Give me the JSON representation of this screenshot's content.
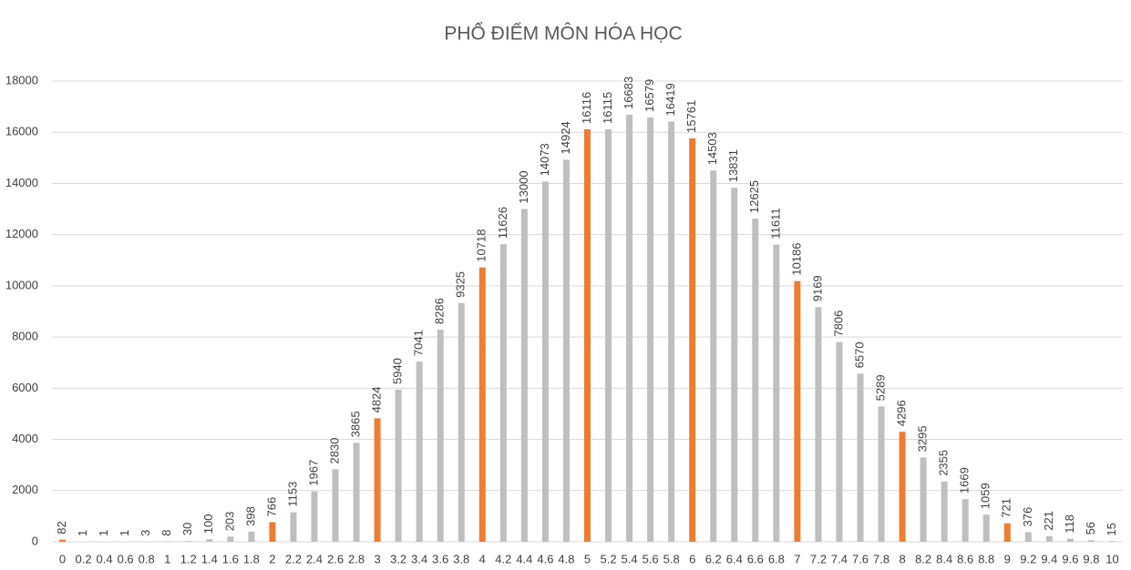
{
  "chart_data": {
    "type": "bar",
    "title": "PHỔ ĐIỂM MÔN HÓA HỌC",
    "categories": [
      "0",
      "0.2",
      "0.4",
      "0.6",
      "0.8",
      "1",
      "1.2",
      "1.4",
      "1.6",
      "1.8",
      "2",
      "2.2",
      "2.4",
      "2.6",
      "2.8",
      "3",
      "3.2",
      "3.4",
      "3.6",
      "3.8",
      "4",
      "4.2",
      "4.4",
      "4.6",
      "4.8",
      "5",
      "5.2",
      "5.4",
      "5.6",
      "5.8",
      "6",
      "6.2",
      "6.4",
      "6.6",
      "6.8",
      "7",
      "7.2",
      "7.4",
      "7.6",
      "7.8",
      "8",
      "8.2",
      "8.4",
      "8.6",
      "8.8",
      "9",
      "9.2",
      "9.4",
      "9.6",
      "9.8",
      "10"
    ],
    "values": [
      82,
      1,
      1,
      1,
      3,
      8,
      30,
      100,
      203,
      398,
      766,
      1153,
      1967,
      2830,
      3865,
      4824,
      5940,
      7041,
      8286,
      9325,
      10718,
      11626,
      13000,
      14073,
      14924,
      16116,
      16115,
      16683,
      16579,
      16419,
      15761,
      14503,
      13831,
      12625,
      11611,
      10186,
      9169,
      7806,
      6570,
      5289,
      4296,
      3295,
      2355,
      1669,
      1059,
      721,
      376,
      221,
      118,
      56,
      15
    ],
    "colors": [
      "#ed7d31",
      "#bfbfbf",
      "#bfbfbf",
      "#bfbfbf",
      "#bfbfbf",
      "#ed7d31",
      "#bfbfbf",
      "#bfbfbf",
      "#bfbfbf",
      "#bfbfbf",
      "#ed7d31",
      "#bfbfbf",
      "#bfbfbf",
      "#bfbfbf",
      "#bfbfbf",
      "#ed7d31",
      "#bfbfbf",
      "#bfbfbf",
      "#bfbfbf",
      "#bfbfbf",
      "#ed7d31",
      "#bfbfbf",
      "#bfbfbf",
      "#bfbfbf",
      "#bfbfbf",
      "#ed7d31",
      "#bfbfbf",
      "#bfbfbf",
      "#bfbfbf",
      "#bfbfbf",
      "#ed7d31",
      "#bfbfbf",
      "#bfbfbf",
      "#bfbfbf",
      "#bfbfbf",
      "#ed7d31",
      "#bfbfbf",
      "#bfbfbf",
      "#bfbfbf",
      "#bfbfbf",
      "#ed7d31",
      "#bfbfbf",
      "#bfbfbf",
      "#bfbfbf",
      "#bfbfbf",
      "#ed7d31",
      "#bfbfbf",
      "#bfbfbf",
      "#bfbfbf",
      "#bfbfbf",
      "#ed7d31"
    ],
    "ylim": [
      0,
      18000
    ],
    "yticks": [
      0,
      2000,
      4000,
      6000,
      8000,
      10000,
      12000,
      14000,
      16000,
      18000
    ],
    "grid": true
  }
}
